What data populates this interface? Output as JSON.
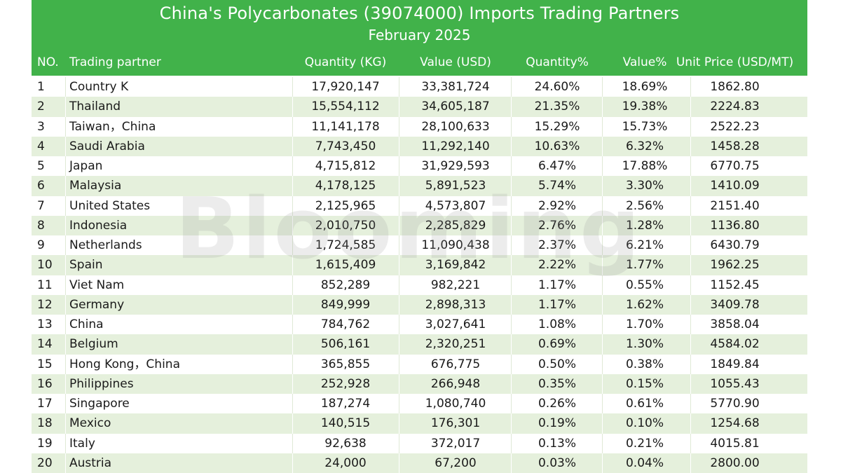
{
  "chart_data": {
    "type": "table",
    "title": "China's Polycarbonates (39074000) Imports Trading Partners",
    "subtitle": "February 2025",
    "columns": [
      "NO.",
      "Trading partner",
      "Quantity (KG)",
      "Value (USD)",
      "Quantity%",
      "Value%",
      "Unit Price (USD/MT)"
    ],
    "rows": [
      [
        "1",
        "Country K",
        "17,920,147",
        "33,381,724",
        "24.60%",
        "18.69%",
        "1862.80"
      ],
      [
        "2",
        "Thailand",
        "15,554,112",
        "34,605,187",
        "21.35%",
        "19.38%",
        "2224.83"
      ],
      [
        "3",
        "Taiwan，China",
        "11,141,178",
        "28,100,633",
        "15.29%",
        "15.73%",
        "2522.23"
      ],
      [
        "4",
        "Saudi Arabia",
        "7,743,450",
        "11,292,140",
        "10.63%",
        "6.32%",
        "1458.28"
      ],
      [
        "5",
        "Japan",
        "4,715,812",
        "31,929,593",
        "6.47%",
        "17.88%",
        "6770.75"
      ],
      [
        "6",
        "Malaysia",
        "4,178,125",
        "5,891,523",
        "5.74%",
        "3.30%",
        "1410.09"
      ],
      [
        "7",
        "United States",
        "2,125,965",
        "4,573,807",
        "2.92%",
        "2.56%",
        "2151.40"
      ],
      [
        "8",
        "Indonesia",
        "2,010,750",
        "2,285,829",
        "2.76%",
        "1.28%",
        "1136.80"
      ],
      [
        "9",
        "Netherlands",
        "1,724,585",
        "11,090,438",
        "2.37%",
        "6.21%",
        "6430.79"
      ],
      [
        "10",
        "Spain",
        "1,615,409",
        "3,169,842",
        "2.22%",
        "1.77%",
        "1962.25"
      ],
      [
        "11",
        "Viet Nam",
        "852,289",
        "982,221",
        "1.17%",
        "0.55%",
        "1152.45"
      ],
      [
        "12",
        "Germany",
        "849,999",
        "2,898,313",
        "1.17%",
        "1.62%",
        "3409.78"
      ],
      [
        "13",
        "China",
        "784,762",
        "3,027,641",
        "1.08%",
        "1.70%",
        "3858.04"
      ],
      [
        "14",
        "Belgium",
        "506,161",
        "2,320,251",
        "0.69%",
        "1.30%",
        "4584.02"
      ],
      [
        "15",
        "Hong Kong，China",
        "365,855",
        "676,775",
        "0.50%",
        "0.38%",
        "1849.84"
      ],
      [
        "16",
        "Philippines",
        "252,928",
        "266,948",
        "0.35%",
        "0.15%",
        "1055.43"
      ],
      [
        "17",
        "Singapore",
        "187,274",
        "1,080,740",
        "0.26%",
        "0.61%",
        "5770.90"
      ],
      [
        "18",
        "Mexico",
        "140,515",
        "176,301",
        "0.19%",
        "0.10%",
        "1254.68"
      ],
      [
        "19",
        "Italy",
        "92,638",
        "372,017",
        "0.13%",
        "0.21%",
        "4015.81"
      ],
      [
        "20",
        "Austria",
        "24,000",
        "67,200",
        "0.03%",
        "0.04%",
        "2800.00"
      ]
    ]
  },
  "watermark": "Blooming",
  "colors": {
    "header_bg": "#41b24a",
    "header_text": "#ffffff",
    "alt_row": "#e5f0dc"
  }
}
